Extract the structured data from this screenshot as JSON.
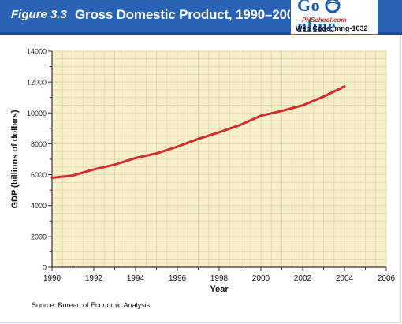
{
  "header": {
    "figure_label": "Figure 3.3",
    "title": "Gross Domestic Product, 1990–2004",
    "go_online": {
      "go_text": "Go",
      "online_text": "nline",
      "site": "PHSchool.com",
      "web_code": "Web Code: mng-1032"
    }
  },
  "source_note": "Source:  Bureau of Economic Analysis",
  "colors": {
    "header_bg": "#2a62b6",
    "plot_bg": "#f7efc9",
    "grid": "#e3d9ae",
    "line": "#d42c2c",
    "axis": "#333333"
  },
  "chart_data": {
    "type": "line",
    "title": "Gross Domestic Product, 1990–2004",
    "xlabel": "Year",
    "ylabel": "GDP (billions of dollars)",
    "xlim": [
      1990,
      2006
    ],
    "ylim": [
      0,
      14000
    ],
    "x_ticks": [
      "1990",
      "1992",
      "1994",
      "1996",
      "1998",
      "2000",
      "2002",
      "2004",
      "2006"
    ],
    "y_ticks": [
      "0",
      "2000",
      "4000",
      "6000",
      "8000",
      "10000",
      "12000",
      "14000"
    ],
    "grid": true,
    "series": [
      {
        "x": [
          1990,
          1991,
          1992,
          1993,
          1994,
          1995,
          1996,
          1997,
          1998,
          1999,
          2000,
          2001,
          2002,
          2003,
          2004
        ],
        "values": [
          5800,
          5950,
          6340,
          6650,
          7080,
          7380,
          7810,
          8320,
          8750,
          9220,
          9820,
          10130,
          10490,
          11060,
          11720
        ]
      }
    ]
  }
}
